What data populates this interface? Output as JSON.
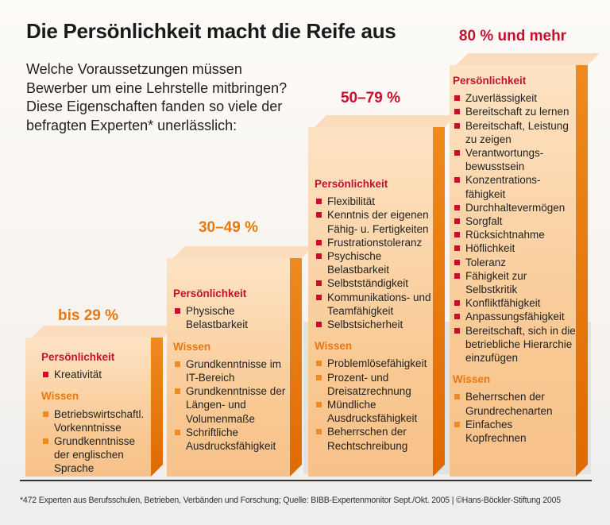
{
  "title": "Die Persönlichkeit macht die Reife aus",
  "intro": "Welche Voraussetzungen müssen Bewerber um eine Lehrstelle mitbringen? Diese Eigenschaften fanden so viele der befragten Experten* unerlässlich:",
  "colors": {
    "persoenlichkeit": "#c8102e",
    "wissen": "#e8780f",
    "bar": "#f9c892",
    "bar_side": "#e8780f"
  },
  "bars": [
    {
      "label": "bis 29 %",
      "persoenlichkeit_heading": "Persönlichkeit",
      "persoenlichkeit": [
        "Kreativität"
      ],
      "wissen_heading": "Wissen",
      "wissen": [
        "Betriebswirtschaftl. Vorkenntnisse",
        "Grundkenntnisse der englischen Sprache"
      ]
    },
    {
      "label": "30–49 %",
      "persoenlichkeit_heading": "Persönlichkeit",
      "persoenlichkeit": [
        "Physische Belastbarkeit"
      ],
      "wissen_heading": "Wissen",
      "wissen": [
        "Grundkenntnisse im IT-Bereich",
        "Grundkenntnisse der Längen- und Volumenmaße",
        "Schriftliche Ausdrucksfähigkeit"
      ]
    },
    {
      "label": "50–79 %",
      "persoenlichkeit_heading": "Persönlichkeit",
      "persoenlichkeit": [
        "Flexibilität",
        "Kenntnis der eigenen Fähig- u. Fertigkeiten",
        "Frustrationstoleranz",
        "Psychische Belastbarkeit",
        "Selbstständigkeit",
        "Kommunikations- und Teamfähigkeit",
        "Selbstsicherheit"
      ],
      "wissen_heading": "Wissen",
      "wissen": [
        "Problemlösefähigkeit",
        "Prozent- und Dreisatzrechnung",
        "Mündliche Ausdrucksfähigkeit",
        "Beherrschen der Rechtschreibung"
      ]
    },
    {
      "label": "80 % und mehr",
      "persoenlichkeit_heading": "Persönlichkeit",
      "persoenlichkeit": [
        "Zuverlässigkeit",
        "Bereitschaft zu lernen",
        "Bereitschaft, Leistung zu zeigen",
        "Verantwortungs- bewusstsein",
        "Konzentrations- fähigkeit",
        "Durchhaltevermögen",
        "Sorgfalt",
        "Rücksichtnahme",
        "Höflichkeit",
        "Toleranz",
        "Fähigkeit zur Selbstkritik",
        "Konfliktfähigkeit",
        "Anpassungsfähigkeit",
        "Bereitschaft, sich in die betriebliche Hierarchie einzufügen"
      ],
      "wissen_heading": "Wissen",
      "wissen": [
        "Beherrschen der Grundrechenarten",
        "Einfaches Kopfrechnen"
      ]
    }
  ],
  "footnote": "*472 Experten aus Berufsschulen, Betrieben, Verbänden und Forschung; Quelle: BIBB-Expertenmonitor Sept./Okt. 2005 | ©Hans-Böckler-Stiftung 2005"
}
